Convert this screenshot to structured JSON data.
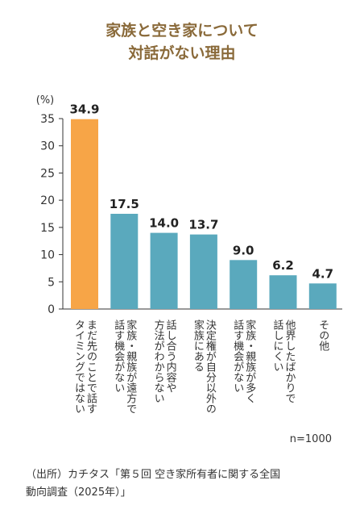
{
  "title": {
    "line1": "家族と空き家について",
    "line2": "対話がない理由"
  },
  "colors": {
    "title": "#8a6a3a",
    "highlight_bar": "#f7a547",
    "bar": "#5aa9bd",
    "axis": "#333333"
  },
  "chart_data": {
    "type": "bar",
    "ylabel": "(%)",
    "ylim": [
      0,
      35
    ],
    "yticks": [
      0,
      5,
      10,
      15,
      20,
      25,
      30,
      35
    ],
    "categories": [
      "まだ先のことで話す\nタイミングではない",
      "家族・親族が遠方で\n話す機会がない",
      "話し合う内容や\n方法がわからない",
      "決定権が自分以外の\n家族にある",
      "家族・親族が多く\n話す機会がない",
      "他界したばかりで\n話しにくい",
      "その他"
    ],
    "values": [
      34.9,
      17.5,
      14.0,
      13.7,
      9.0,
      6.2,
      4.7
    ],
    "value_labels": [
      "34.9",
      "17.5",
      "14.0",
      "13.7",
      "9.0",
      "6.2",
      "4.7"
    ],
    "highlight_index": 0,
    "grid": false
  },
  "note": "n=1000",
  "source": {
    "line1": "（出所）カチタス「第５回 空き家所有者に関する全国",
    "line2": "動向調査（2025年）」"
  }
}
